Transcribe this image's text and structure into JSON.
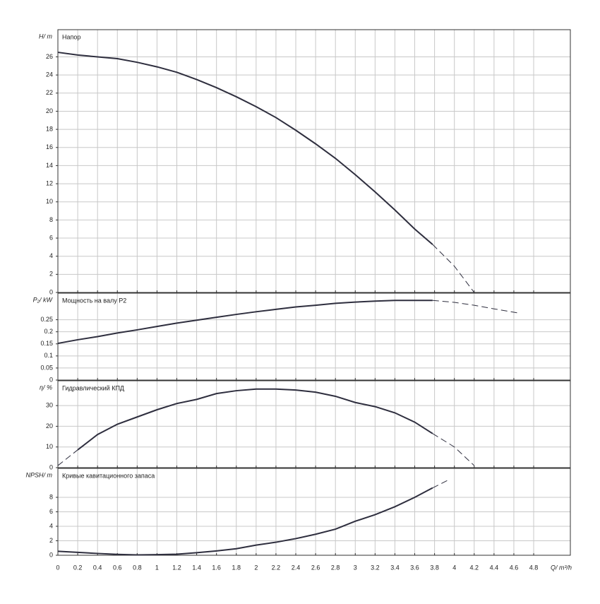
{
  "chart_data": [
    {
      "type": "line",
      "title": "Напор",
      "ylabel": "H/ m",
      "ylim": [
        0,
        29
      ],
      "yticks": [
        0,
        2,
        4,
        6,
        8,
        10,
        12,
        14,
        16,
        18,
        20,
        22,
        24,
        26
      ],
      "grid": true,
      "series": [
        {
          "color": "#2e2e3e",
          "dashed": false,
          "x": [
            0,
            0.2,
            0.4,
            0.6,
            0.8,
            1.0,
            1.2,
            1.4,
            1.6,
            1.8,
            2.0,
            2.2,
            2.4,
            2.6,
            2.8,
            3.0,
            3.2,
            3.4,
            3.6,
            3.78
          ],
          "values": [
            26.5,
            26.2,
            26.0,
            25.8,
            25.4,
            24.9,
            24.3,
            23.5,
            22.6,
            21.6,
            20.5,
            19.3,
            17.9,
            16.4,
            14.8,
            13.0,
            11.1,
            9.1,
            7.0,
            5.3
          ]
        },
        {
          "color": "#2e2e3e",
          "dashed": true,
          "x": [
            3.78,
            4.0,
            4.2
          ],
          "values": [
            5.3,
            2.9,
            0
          ]
        }
      ]
    },
    {
      "type": "line",
      "title": "Мощность на валу P2",
      "ylabel": "P₂/ kW",
      "ylim": [
        0,
        0.36
      ],
      "yticks": [
        0,
        0.05,
        0.1,
        0.15,
        0.2,
        0.25
      ],
      "grid": true,
      "series": [
        {
          "color": "#2e2e3e",
          "dashed": false,
          "x": [
            0,
            0.2,
            0.4,
            0.6,
            0.8,
            1.0,
            1.2,
            1.4,
            1.6,
            1.8,
            2.0,
            2.2,
            2.4,
            2.6,
            2.8,
            3.0,
            3.2,
            3.4,
            3.6,
            3.78
          ],
          "values": [
            0.152,
            0.167,
            0.18,
            0.195,
            0.208,
            0.222,
            0.236,
            0.248,
            0.26,
            0.272,
            0.283,
            0.293,
            0.303,
            0.31,
            0.318,
            0.323,
            0.327,
            0.33,
            0.33,
            0.33
          ]
        },
        {
          "color": "#2e2e3e",
          "dashed": true,
          "x": [
            3.78,
            4.0,
            4.2,
            4.4,
            4.66
          ],
          "values": [
            0.33,
            0.322,
            0.31,
            0.295,
            0.277
          ]
        }
      ]
    },
    {
      "type": "line",
      "title": "Гидравлический КПД",
      "ylabel": "η/ %",
      "ylim": [
        0,
        42
      ],
      "yticks": [
        0,
        10,
        20,
        30
      ],
      "grid": true,
      "series": [
        {
          "color": "#2e2e3e",
          "dashed": true,
          "x": [
            0,
            0.2
          ],
          "values": [
            1,
            8.6
          ]
        },
        {
          "color": "#2e2e3e",
          "dashed": false,
          "x": [
            0.2,
            0.4,
            0.6,
            0.8,
            1.0,
            1.2,
            1.4,
            1.6,
            1.8,
            2.0,
            2.2,
            2.4,
            2.6,
            2.8,
            3.0,
            3.2,
            3.4,
            3.6,
            3.78
          ],
          "values": [
            8.6,
            16,
            21,
            24.5,
            28,
            31,
            33,
            35.8,
            37.2,
            38,
            38,
            37.5,
            36.5,
            34.5,
            31.5,
            29.5,
            26.5,
            22,
            16.5
          ]
        },
        {
          "color": "#2e2e3e",
          "dashed": true,
          "x": [
            3.78,
            4.0,
            4.2
          ],
          "values": [
            16.5,
            10,
            1
          ]
        }
      ]
    },
    {
      "type": "line",
      "title": "Кривые кавитационного запаса",
      "ylabel": "NPSH/ m",
      "xlabel": "Q/ m³/h",
      "ylim": [
        0,
        12
      ],
      "yticks": [
        0,
        2,
        4,
        6,
        8
      ],
      "xlim": [
        0,
        5.17
      ],
      "xticks": [
        0,
        0.2,
        0.4,
        0.6,
        0.8,
        1,
        1.2,
        1.4,
        1.6,
        1.8,
        2,
        2.2,
        2.4,
        2.6,
        2.8,
        3,
        3.2,
        3.4,
        3.6,
        3.8,
        4,
        4.2,
        4.4,
        4.6,
        4.8
      ],
      "grid": true,
      "series": [
        {
          "color": "#2e2e3e",
          "dashed": false,
          "x": [
            0,
            0.2,
            0.4,
            0.6,
            0.8,
            1.0,
            1.2,
            1.4,
            1.6,
            1.8,
            2.0,
            2.2,
            2.4,
            2.6,
            2.8,
            3.0,
            3.2,
            3.4,
            3.6,
            3.78
          ],
          "values": [
            0.55,
            0.4,
            0.25,
            0.12,
            0.05,
            0.08,
            0.15,
            0.35,
            0.6,
            0.9,
            1.4,
            1.8,
            2.3,
            2.9,
            3.6,
            4.7,
            5.6,
            6.7,
            8.0,
            9.3
          ]
        },
        {
          "color": "#2e2e3e",
          "dashed": true,
          "x": [
            3.78,
            3.94
          ],
          "values": [
            9.3,
            10.4
          ]
        }
      ]
    }
  ]
}
